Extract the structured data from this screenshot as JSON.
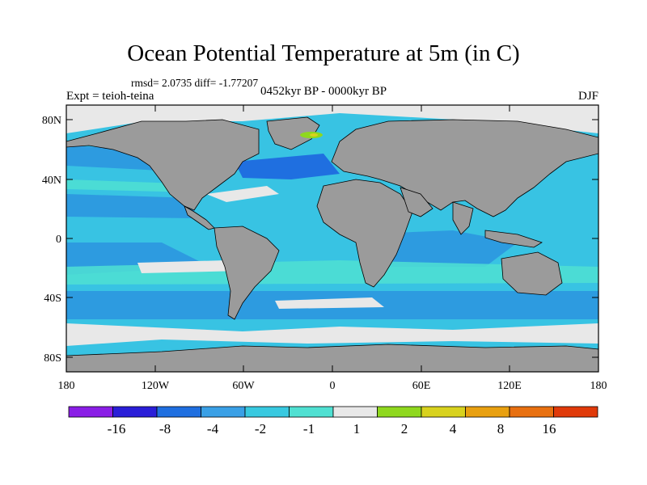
{
  "header": {
    "title": "Ocean Potential Temperature at 5m (in C)",
    "stats": "rmsd= 2.0735  diff= -1.77207",
    "expt": "Expt = teioh-teina",
    "period": "0452kyr BP - 0000kyr BP",
    "season": "DJF"
  },
  "axes": {
    "lat_labels": [
      "80N",
      "40N",
      "0",
      "40S",
      "80S"
    ],
    "lon_labels": [
      "180",
      "120W",
      "60W",
      "0",
      "60E",
      "120E",
      "180"
    ]
  },
  "colorbar": {
    "bins": [
      {
        "color": "#8a1ee6"
      },
      {
        "color": "#2a1ed8"
      },
      {
        "color": "#1f6fe0"
      },
      {
        "color": "#3aa0e6"
      },
      {
        "color": "#38c9e0"
      },
      {
        "color": "#4fe0d2"
      },
      {
        "color": "#e8e8e8"
      },
      {
        "color": "#8fd81e"
      },
      {
        "color": "#d8d21e"
      },
      {
        "color": "#e8a010"
      },
      {
        "color": "#e87010"
      },
      {
        "color": "#e03a0a"
      }
    ],
    "labels": [
      "-16",
      "-8",
      "-4",
      "-2",
      "-1",
      "1",
      "2",
      "4",
      "8",
      "16"
    ]
  },
  "colors": {
    "land": "#9b9b9b",
    "ocean": "#38c3e3",
    "ocean_dark": "#2d9be0",
    "ice": "#e8e8e8"
  }
}
